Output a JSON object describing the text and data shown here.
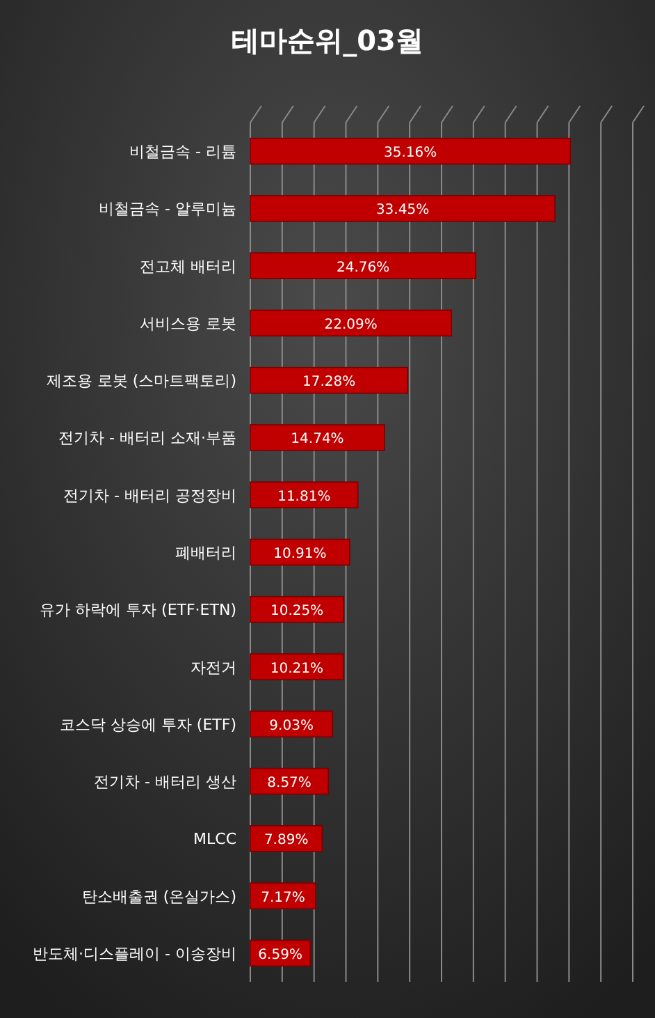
{
  "chart_data": {
    "type": "bar",
    "orientation": "horizontal",
    "title": "테마순위_03월",
    "categories": [
      "비철금속 - 리튬",
      "비철금속 - 알루미늄",
      "전고체 배터리",
      "서비스용 로봇",
      "제조용 로봇 (스마트팩토리)",
      "전기차 - 배터리 소재·부품",
      "전기차 - 배터리 공정장비",
      "폐배터리",
      "유가 하락에 투자 (ETF·ETN)",
      "자전거",
      "코스닥 상승에 투자 (ETF)",
      "전기차 - 배터리 생산",
      "MLCC",
      "탄소배출권 (온실가스)",
      "반도체·디스플레이 - 이송장비"
    ],
    "values": [
      35.16,
      33.45,
      24.76,
      22.09,
      17.28,
      14.74,
      11.81,
      10.91,
      10.25,
      10.21,
      9.03,
      8.57,
      7.89,
      7.17,
      6.59
    ],
    "value_labels": [
      "35.16%",
      "33.45%",
      "24.76%",
      "22.09%",
      "17.28%",
      "14.74%",
      "11.81%",
      "10.91%",
      "10.25%",
      "10.21%",
      "9.03%",
      "8.57%",
      "7.89%",
      "7.17%",
      "6.59%"
    ],
    "color": "#c00000",
    "xlim": [
      0,
      42
    ],
    "xticks": [
      {
        "value": 0,
        "label": null
      },
      {
        "value": 3.5,
        "label": null
      },
      {
        "value": 7,
        "label": null
      },
      {
        "value": 10.5,
        "label": null
      },
      {
        "value": 14,
        "label": null
      },
      {
        "value": 17.5,
        "label": null
      },
      {
        "value": 21,
        "label": null
      },
      {
        "value": 24.5,
        "label": null
      },
      {
        "value": 28,
        "label": null
      },
      {
        "value": 31.5,
        "label": null
      },
      {
        "value": 35,
        "label": null
      },
      {
        "value": 38.5,
        "label": null
      },
      {
        "value": 42,
        "label": null
      }
    ],
    "grid": "x",
    "tick_labels": "y"
  }
}
